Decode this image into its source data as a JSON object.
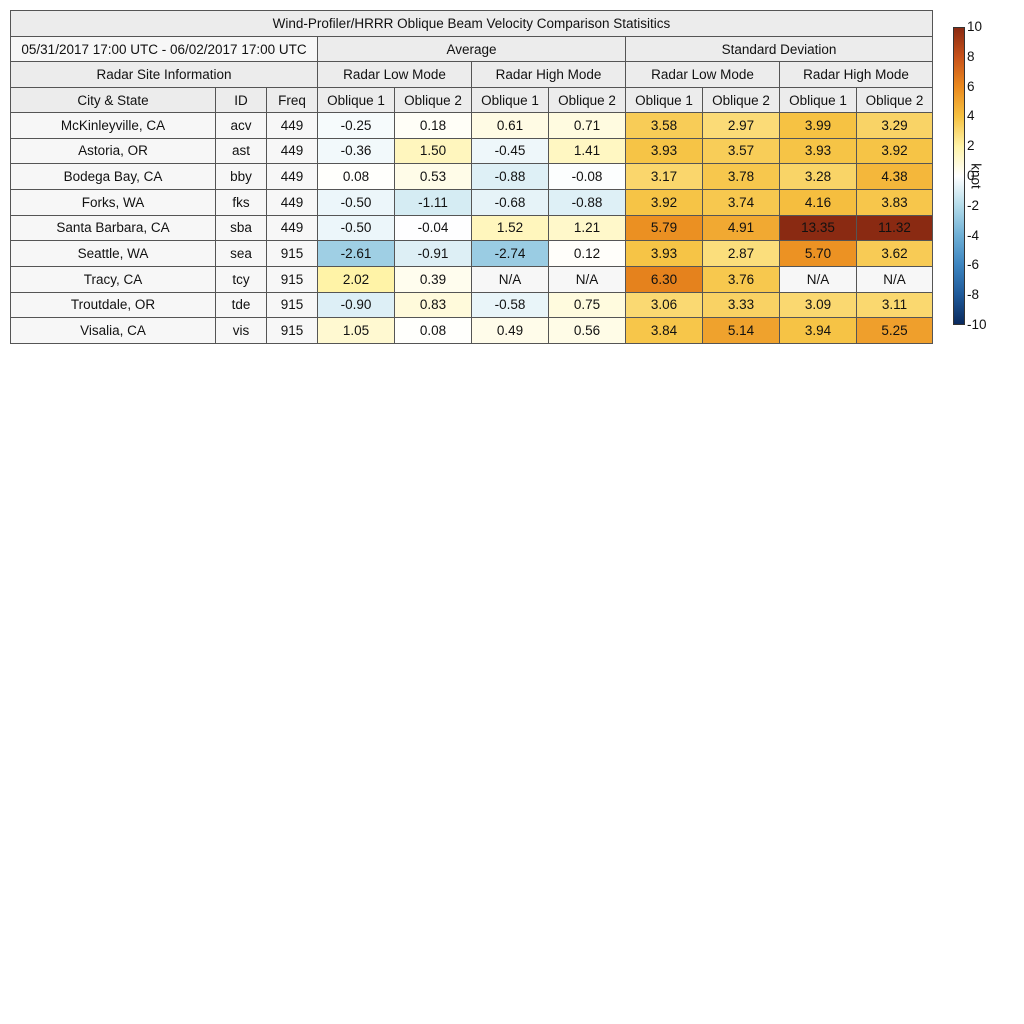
{
  "title": "Wind-Profiler/HRRR Oblique Beam Velocity Comparison Statisitics",
  "date_range": "05/31/2017 17:00 UTC - 06/02/2017 17:00 UTC",
  "groups": [
    "Average",
    "Standard Deviation"
  ],
  "site_info": "Radar Site Information",
  "modes": [
    "Radar Low Mode",
    "Radar High Mode",
    "Radar Low Mode",
    "Radar High Mode"
  ],
  "columns": [
    "City & State",
    "ID",
    "Freq",
    "Oblique 1",
    "Oblique 2",
    "Oblique 1",
    "Oblique 2",
    "Oblique 1",
    "Oblique 2",
    "Oblique 1",
    "Oblique 2"
  ],
  "rows": [
    {
      "city": "McKinleyville, CA",
      "id": "acv",
      "freq": "449",
      "values": [
        "-0.25",
        "0.18",
        "0.61",
        "0.71",
        "3.58",
        "2.97",
        "3.99",
        "3.29"
      ]
    },
    {
      "city": "Astoria, OR",
      "id": "ast",
      "freq": "449",
      "values": [
        "-0.36",
        "1.50",
        "-0.45",
        "1.41",
        "3.93",
        "3.57",
        "3.93",
        "3.92"
      ]
    },
    {
      "city": "Bodega Bay, CA",
      "id": "bby",
      "freq": "449",
      "values": [
        "0.08",
        "0.53",
        "-0.88",
        "-0.08",
        "3.17",
        "3.78",
        "3.28",
        "4.38"
      ]
    },
    {
      "city": "Forks, WA",
      "id": "fks",
      "freq": "449",
      "values": [
        "-0.50",
        "-1.11",
        "-0.68",
        "-0.88",
        "3.92",
        "3.74",
        "4.16",
        "3.83"
      ]
    },
    {
      "city": "Santa Barbara, CA",
      "id": "sba",
      "freq": "449",
      "values": [
        "-0.50",
        "-0.04",
        "1.52",
        "1.21",
        "5.79",
        "4.91",
        "13.35",
        "11.32"
      ]
    },
    {
      "city": "Seattle, WA",
      "id": "sea",
      "freq": "915",
      "values": [
        "-2.61",
        "-0.91",
        "-2.74",
        "0.12",
        "3.93",
        "2.87",
        "5.70",
        "3.62"
      ]
    },
    {
      "city": "Tracy, CA",
      "id": "tcy",
      "freq": "915",
      "values": [
        "2.02",
        "0.39",
        "N/A",
        "N/A",
        "6.30",
        "3.76",
        "N/A",
        "N/A"
      ]
    },
    {
      "city": "Troutdale, OR",
      "id": "tde",
      "freq": "915",
      "values": [
        "-0.90",
        "0.83",
        "-0.58",
        "0.75",
        "3.06",
        "3.33",
        "3.09",
        "3.11"
      ]
    },
    {
      "city": "Visalia, CA",
      "id": "vis",
      "freq": "915",
      "values": [
        "1.05",
        "0.08",
        "0.49",
        "0.56",
        "3.84",
        "5.14",
        "3.94",
        "5.25"
      ]
    }
  ],
  "colorbar": {
    "label": "knot",
    "lim": [
      -10,
      10
    ],
    "ticks": [
      10,
      8,
      6,
      4,
      2,
      0,
      -2,
      -4,
      -6,
      -8,
      -10
    ]
  }
}
